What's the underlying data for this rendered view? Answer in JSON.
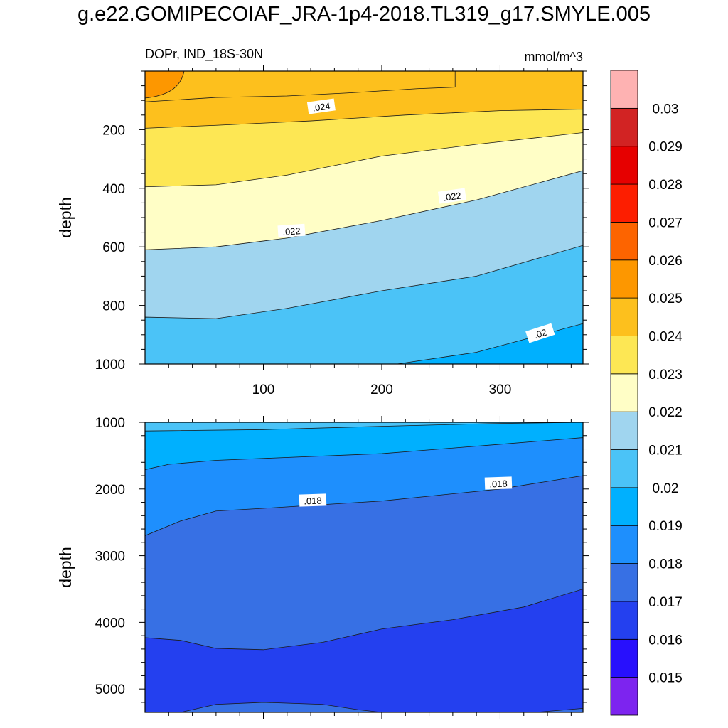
{
  "title": "g.e22.GOMIPECOIAF_JRA-1p4-2018.TL319_g17.SMYLE.005",
  "subtitle_left": "DOPr, IND_18S-30N",
  "subtitle_right": "mmol/m^3",
  "chart_data": [
    {
      "type": "contour",
      "panel": "upper",
      "ylabel": "depth",
      "xlabel": "",
      "xlim": [
        0,
        370
      ],
      "ylim": [
        1000,
        0
      ],
      "x_ticks": [
        100,
        200,
        300
      ],
      "x_tick_labels": [
        "100",
        "200",
        "300"
      ],
      "y_ticks": [
        200,
        400,
        600,
        800,
        1000
      ],
      "y_tick_labels": [
        "200",
        "400",
        "600",
        "800",
        "1000"
      ],
      "contour_labels": [
        ".024",
        ".022",
        ".022",
        ".02"
      ],
      "bands": [
        {
          "level_min": 0.02,
          "level_max": 0.021,
          "color": "#00b0fe",
          "upper_boundary": [
            [
              213,
              1000
            ],
            [
              280,
              960
            ],
            [
              370,
              862
            ]
          ]
        },
        {
          "level_min": 0.021,
          "level_max": 0.022,
          "color": "#4bc3f7",
          "upper_boundary": [
            [
              0,
              840
            ],
            [
              60,
              845
            ],
            [
              120,
              810
            ],
            [
              200,
              750
            ],
            [
              280,
              700
            ],
            [
              370,
              595
            ]
          ]
        },
        {
          "level_min": 0.022,
          "level_max": 0.023,
          "color": "#a0d5ef",
          "upper_boundary": [
            [
              0,
              610
            ],
            [
              60,
              600
            ],
            [
              120,
              570
            ],
            [
              200,
              510
            ],
            [
              280,
              440
            ],
            [
              370,
              340
            ]
          ]
        },
        {
          "level_min": 0.023,
          "level_max": 0.024,
          "color": "#fffec6",
          "upper_boundary": [
            [
              0,
              395
            ],
            [
              60,
              388
            ],
            [
              120,
              355
            ],
            [
              200,
              290
            ],
            [
              280,
              250
            ],
            [
              370,
              210
            ]
          ]
        },
        {
          "level_min": 0.024,
          "level_max": 0.025,
          "color": "#fde754",
          "upper_boundary": [
            [
              0,
              195
            ],
            [
              60,
              185
            ],
            [
              140,
              170
            ],
            [
              220,
              150
            ],
            [
              300,
              135
            ],
            [
              370,
              130
            ]
          ]
        },
        {
          "level_min": 0.025,
          "level_max": 0.026,
          "color": "#fdc01d",
          "upper_boundary": [
            [
              0,
              0
            ],
            [
              370,
              0
            ]
          ]
        },
        {
          "level_min": 0.026,
          "level_max": 0.027,
          "color": "#fd9700",
          "upper_boundary": [
            [
              0,
              0
            ],
            [
              33,
              0
            ]
          ]
        }
      ]
    },
    {
      "type": "contour",
      "panel": "lower",
      "ylabel": "depth",
      "xlabel": "",
      "xlim": [
        0,
        370
      ],
      "ylim": [
        5350,
        1000
      ],
      "x_ticks": [
        100,
        200,
        300
      ],
      "x_tick_labels": [
        "",
        "",
        ""
      ],
      "y_ticks": [
        1000,
        2000,
        3000,
        4000,
        5000
      ],
      "y_tick_labels": [
        "1000",
        "2000",
        "3000",
        "4000",
        "5000"
      ],
      "contour_labels": [
        ".018",
        ".018"
      ],
      "bands": [
        {
          "level_min": 0.016,
          "level_max": 0.017,
          "color": "#2440ef",
          "upper_boundary": [
            [
              0,
              4230
            ],
            [
              30,
              4270
            ],
            [
              60,
              4390
            ],
            [
              100,
              4410
            ],
            [
              150,
              4300
            ],
            [
              200,
              4100
            ],
            [
              260,
              3960
            ],
            [
              320,
              3770
            ],
            [
              370,
              3500
            ]
          ]
        },
        {
          "level_min": 0.017,
          "level_max": 0.018,
          "color": "#3770e4",
          "upper_boundary": [
            [
              0,
              2700
            ],
            [
              30,
              2480
            ],
            [
              60,
              2330
            ],
            [
              100,
              2290
            ],
            [
              200,
              2180
            ],
            [
              300,
              2000
            ],
            [
              370,
              1800
            ]
          ]
        },
        {
          "level_min": 0.018,
          "level_max": 0.019,
          "color": "#1e8ffd",
          "upper_boundary": [
            [
              0,
              1710
            ],
            [
              20,
              1630
            ],
            [
              60,
              1570
            ],
            [
              200,
              1470
            ],
            [
              300,
              1330
            ],
            [
              370,
              1230
            ]
          ]
        },
        {
          "level_min": 0.019,
          "level_max": 0.02,
          "color": "#00b0fe",
          "upper_boundary": [
            [
              0,
              1130
            ],
            [
              100,
              1110
            ],
            [
              200,
              1060
            ],
            [
              290,
              1020
            ],
            [
              370,
              1000
            ]
          ]
        },
        {
          "level_min": 0.02,
          "level_max": 0.021,
          "color": "#4bc3f7",
          "upper_boundary": [
            [
              0,
              1000
            ],
            [
              290,
              1000
            ]
          ]
        }
      ],
      "bottom_patch": {
        "level_min": 0.017,
        "level_max": 0.018,
        "color": "#3770e4",
        "lower_boundary": [
          [
            30,
            5350
          ],
          [
            60,
            5230
          ],
          [
            100,
            5200
          ],
          [
            150,
            5230
          ],
          [
            180,
            5310
          ],
          [
            200,
            5350
          ]
        ],
        "right_boundary": [
          [
            330,
            5350
          ],
          [
            370,
            5290
          ]
        ]
      }
    }
  ],
  "colorbar": {
    "colors": [
      "#7d24ef",
      "#2810fd",
      "#2440ef",
      "#3770e4",
      "#1e8ffd",
      "#00b0fe",
      "#4bc3f7",
      "#a0d5ef",
      "#fffec6",
      "#fde754",
      "#fdc01d",
      "#fd9700",
      "#fd6400",
      "#fd1e00",
      "#e60000",
      "#d22323",
      "#feb2b2"
    ],
    "labels": [
      "0.015",
      "0.016",
      "0.017",
      "0.018",
      "0.019",
      "0.02",
      "0.021",
      "0.022",
      "0.023",
      "0.024",
      "0.025",
      "0.026",
      "0.027",
      "0.028",
      "0.029",
      "0.03"
    ]
  }
}
